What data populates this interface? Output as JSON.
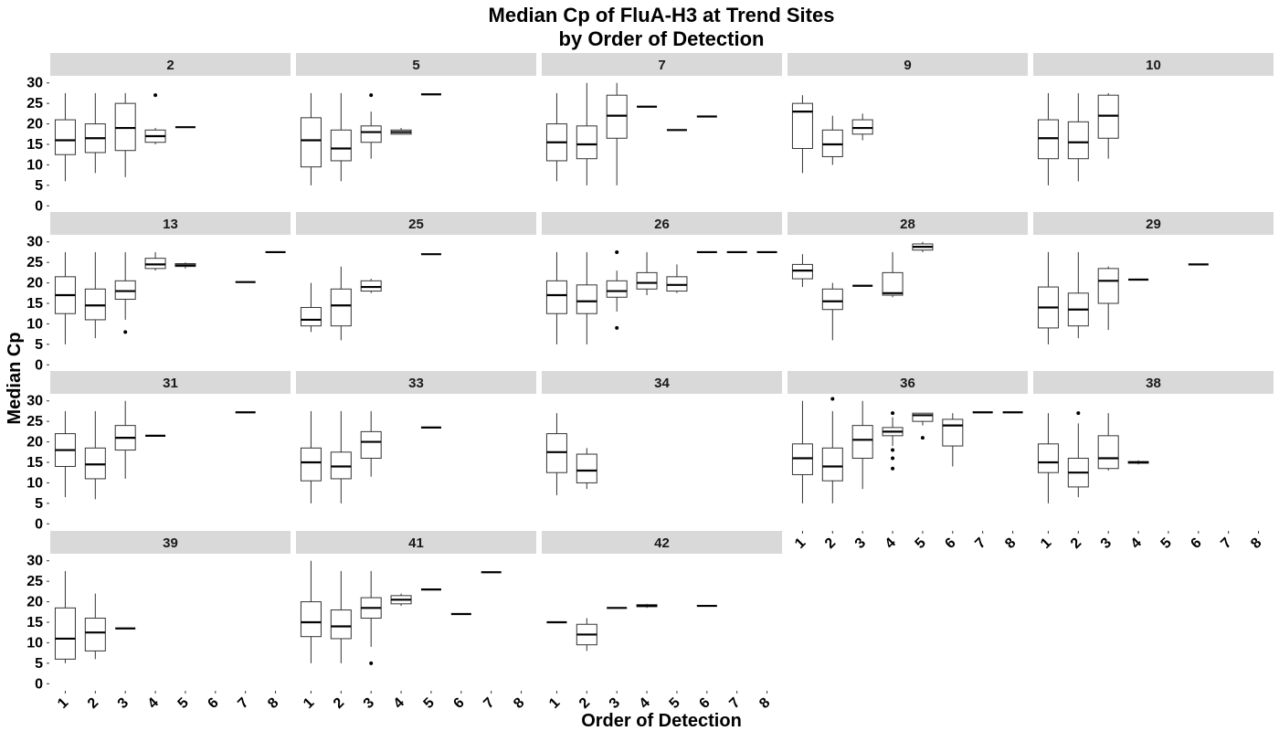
{
  "chart_data": {
    "type": "boxplot",
    "title": "Median Cp of FluA-H3 at Trend Sites\nby Order of Detection",
    "title_lines": [
      "Median Cp of FluA-H3 at Trend Sites",
      "by Order of Detection"
    ],
    "xlabel": "Order of Detection",
    "ylabel": "Median Cp",
    "categories": [
      "1",
      "2",
      "3",
      "4",
      "5",
      "6",
      "7",
      "8"
    ],
    "yticks": [
      0,
      5,
      10,
      15,
      20,
      25,
      30
    ],
    "ylim": [
      -1.5,
      31.5
    ],
    "grid": false,
    "layout": "facet_wrap, 5 columns, 4 rows",
    "colors": {
      "strip": "#d9d9d9",
      "box": "#333333",
      "background": "#ffffff"
    },
    "panels": [
      {
        "site": "2",
        "boxes": [
          {
            "x": 1,
            "min": 6,
            "q1": 12.5,
            "median": 16,
            "q3": 21,
            "max": 27.5,
            "outliers": []
          },
          {
            "x": 2,
            "min": 8,
            "q1": 13,
            "median": 16.5,
            "q3": 20,
            "max": 27.5,
            "outliers": []
          },
          {
            "x": 3,
            "min": 7,
            "q1": 13.5,
            "median": 19,
            "q3": 25,
            "max": 27.5,
            "outliers": []
          },
          {
            "x": 4,
            "min": 15,
            "q1": 15.5,
            "median": 17,
            "q3": 18.5,
            "max": 19,
            "outliers": [
              27
            ]
          },
          {
            "x": 5,
            "min": 19.2,
            "q1": 19.2,
            "median": 19.2,
            "q3": 19.2,
            "max": 19.2,
            "outliers": []
          }
        ]
      },
      {
        "site": "5",
        "boxes": [
          {
            "x": 1,
            "min": 5,
            "q1": 9.5,
            "median": 16,
            "q3": 21.5,
            "max": 27.5,
            "outliers": []
          },
          {
            "x": 2,
            "min": 6,
            "q1": 11,
            "median": 14,
            "q3": 18.5,
            "max": 27.5,
            "outliers": []
          },
          {
            "x": 3,
            "min": 11.5,
            "q1": 15.5,
            "median": 18,
            "q3": 19.5,
            "max": 23,
            "outliers": [
              27
            ]
          },
          {
            "x": 4,
            "min": 17.5,
            "q1": 17.5,
            "median": 18,
            "q3": 18.5,
            "max": 19,
            "outliers": []
          },
          {
            "x": 5,
            "min": 27.2,
            "q1": 27.2,
            "median": 27.2,
            "q3": 27.2,
            "max": 27.2,
            "outliers": []
          }
        ]
      },
      {
        "site": "7",
        "boxes": [
          {
            "x": 1,
            "min": 6,
            "q1": 11,
            "median": 15.5,
            "q3": 20,
            "max": 27.5,
            "outliers": []
          },
          {
            "x": 2,
            "min": 5,
            "q1": 11.5,
            "median": 15,
            "q3": 19.5,
            "max": 30,
            "outliers": []
          },
          {
            "x": 3,
            "min": 5,
            "q1": 16.5,
            "median": 22,
            "q3": 27,
            "max": 30,
            "outliers": []
          },
          {
            "x": 4,
            "min": 24.2,
            "q1": 24.2,
            "median": 24.2,
            "q3": 24.2,
            "max": 24.2,
            "outliers": []
          },
          {
            "x": 5,
            "min": 18.5,
            "q1": 18.5,
            "median": 18.5,
            "q3": 18.5,
            "max": 18.5,
            "outliers": []
          },
          {
            "x": 6,
            "min": 21.8,
            "q1": 21.8,
            "median": 21.8,
            "q3": 21.8,
            "max": 21.8,
            "outliers": []
          }
        ]
      },
      {
        "site": "9",
        "boxes": [
          {
            "x": 1,
            "min": 8,
            "q1": 14,
            "median": 23,
            "q3": 25,
            "max": 27,
            "outliers": []
          },
          {
            "x": 2,
            "min": 10,
            "q1": 12,
            "median": 15,
            "q3": 18.5,
            "max": 22,
            "outliers": []
          },
          {
            "x": 3,
            "min": 16,
            "q1": 17.5,
            "median": 19,
            "q3": 21,
            "max": 22.5,
            "outliers": []
          }
        ]
      },
      {
        "site": "10",
        "boxes": [
          {
            "x": 1,
            "min": 5,
            "q1": 11.5,
            "median": 16.5,
            "q3": 21,
            "max": 27.5,
            "outliers": []
          },
          {
            "x": 2,
            "min": 6,
            "q1": 11.5,
            "median": 15.5,
            "q3": 20.5,
            "max": 27.5,
            "outliers": []
          },
          {
            "x": 3,
            "min": 11.5,
            "q1": 16.5,
            "median": 22,
            "q3": 27,
            "max": 27.5,
            "outliers": []
          }
        ]
      },
      {
        "site": "13",
        "boxes": [
          {
            "x": 1,
            "min": 5,
            "q1": 12.5,
            "median": 17,
            "q3": 21.5,
            "max": 27.5,
            "outliers": []
          },
          {
            "x": 2,
            "min": 6.5,
            "q1": 11,
            "median": 14.5,
            "q3": 18.5,
            "max": 27.5,
            "outliers": []
          },
          {
            "x": 3,
            "min": 11,
            "q1": 16,
            "median": 18,
            "q3": 20.5,
            "max": 27.5,
            "outliers": [
              8
            ]
          },
          {
            "x": 4,
            "min": 23,
            "q1": 23.5,
            "median": 24.5,
            "q3": 26,
            "max": 27.5,
            "outliers": []
          },
          {
            "x": 5,
            "min": 23.5,
            "q1": 24,
            "median": 24.3,
            "q3": 24.7,
            "max": 25,
            "outliers": []
          },
          {
            "x": 7,
            "min": 20.2,
            "q1": 20.2,
            "median": 20.2,
            "q3": 20.2,
            "max": 20.2,
            "outliers": []
          },
          {
            "x": 8,
            "min": 27.5,
            "q1": 27.5,
            "median": 27.5,
            "q3": 27.5,
            "max": 27.5,
            "outliers": []
          }
        ]
      },
      {
        "site": "25",
        "boxes": [
          {
            "x": 1,
            "min": 8,
            "q1": 9.5,
            "median": 11,
            "q3": 14,
            "max": 20,
            "outliers": []
          },
          {
            "x": 2,
            "min": 6,
            "q1": 9.5,
            "median": 14.5,
            "q3": 18.5,
            "max": 24,
            "outliers": []
          },
          {
            "x": 3,
            "min": 17.5,
            "q1": 18,
            "median": 19,
            "q3": 20.5,
            "max": 21,
            "outliers": []
          },
          {
            "x": 5,
            "min": 27,
            "q1": 27,
            "median": 27,
            "q3": 27,
            "max": 27,
            "outliers": []
          }
        ]
      },
      {
        "site": "26",
        "boxes": [
          {
            "x": 1,
            "min": 5,
            "q1": 12.5,
            "median": 17,
            "q3": 20.5,
            "max": 27.5,
            "outliers": []
          },
          {
            "x": 2,
            "min": 5,
            "q1": 12.5,
            "median": 15.5,
            "q3": 19.5,
            "max": 27.5,
            "outliers": []
          },
          {
            "x": 3,
            "min": 13,
            "q1": 16.5,
            "median": 18,
            "q3": 20.5,
            "max": 23,
            "outliers": [
              27.5,
              9
            ]
          },
          {
            "x": 4,
            "min": 17,
            "q1": 18.5,
            "median": 20,
            "q3": 22.5,
            "max": 27.5,
            "outliers": []
          },
          {
            "x": 5,
            "min": 17.5,
            "q1": 18,
            "median": 19.5,
            "q3": 21.5,
            "max": 24.5,
            "outliers": []
          },
          {
            "x": 6,
            "min": 27.5,
            "q1": 27.5,
            "median": 27.5,
            "q3": 27.5,
            "max": 27.5,
            "outliers": []
          },
          {
            "x": 7,
            "min": 27.5,
            "q1": 27.5,
            "median": 27.5,
            "q3": 27.5,
            "max": 27.5,
            "outliers": []
          },
          {
            "x": 8,
            "min": 27.5,
            "q1": 27.5,
            "median": 27.5,
            "q3": 27.5,
            "max": 27.5,
            "outliers": []
          }
        ]
      },
      {
        "site": "28",
        "boxes": [
          {
            "x": 1,
            "min": 19,
            "q1": 21,
            "median": 23,
            "q3": 24.5,
            "max": 27,
            "outliers": []
          },
          {
            "x": 2,
            "min": 6,
            "q1": 13.5,
            "median": 15.5,
            "q3": 18.5,
            "max": 20,
            "outliers": []
          },
          {
            "x": 3,
            "min": 19.3,
            "q1": 19.3,
            "median": 19.3,
            "q3": 19.3,
            "max": 19.3,
            "outliers": []
          },
          {
            "x": 4,
            "min": 16.5,
            "q1": 17,
            "median": 17.5,
            "q3": 22.5,
            "max": 27.5,
            "outliers": []
          },
          {
            "x": 5,
            "min": 27.5,
            "q1": 28,
            "median": 28.8,
            "q3": 29.5,
            "max": 30,
            "outliers": []
          }
        ]
      },
      {
        "site": "29",
        "boxes": [
          {
            "x": 1,
            "min": 5,
            "q1": 9,
            "median": 14,
            "q3": 19,
            "max": 27.5,
            "outliers": []
          },
          {
            "x": 2,
            "min": 6.5,
            "q1": 9.5,
            "median": 13.5,
            "q3": 17.5,
            "max": 27.5,
            "outliers": []
          },
          {
            "x": 3,
            "min": 8.5,
            "q1": 15,
            "median": 20.5,
            "q3": 23.5,
            "max": 24,
            "outliers": []
          },
          {
            "x": 4,
            "min": 20.8,
            "q1": 20.8,
            "median": 20.8,
            "q3": 20.8,
            "max": 20.8,
            "outliers": []
          },
          {
            "x": 6,
            "min": 24.5,
            "q1": 24.5,
            "median": 24.5,
            "q3": 24.5,
            "max": 24.5,
            "outliers": []
          }
        ]
      },
      {
        "site": "31",
        "boxes": [
          {
            "x": 1,
            "min": 6.5,
            "q1": 14,
            "median": 18,
            "q3": 22,
            "max": 27.5,
            "outliers": []
          },
          {
            "x": 2,
            "min": 6,
            "q1": 11,
            "median": 14.5,
            "q3": 18.5,
            "max": 27.5,
            "outliers": []
          },
          {
            "x": 3,
            "min": 11,
            "q1": 18,
            "median": 21,
            "q3": 24,
            "max": 30,
            "outliers": []
          },
          {
            "x": 4,
            "min": 21.5,
            "q1": 21.5,
            "median": 21.5,
            "q3": 21.5,
            "max": 21.5,
            "outliers": []
          },
          {
            "x": 7,
            "min": 27.2,
            "q1": 27.2,
            "median": 27.2,
            "q3": 27.2,
            "max": 27.2,
            "outliers": []
          }
        ]
      },
      {
        "site": "33",
        "boxes": [
          {
            "x": 1,
            "min": 5,
            "q1": 10.5,
            "median": 15,
            "q3": 18.5,
            "max": 27.5,
            "outliers": []
          },
          {
            "x": 2,
            "min": 5,
            "q1": 11,
            "median": 14,
            "q3": 17.5,
            "max": 27.5,
            "outliers": []
          },
          {
            "x": 3,
            "min": 11.5,
            "q1": 16,
            "median": 20,
            "q3": 22.5,
            "max": 27.5,
            "outliers": []
          },
          {
            "x": 5,
            "min": 23.5,
            "q1": 23.5,
            "median": 23.5,
            "q3": 23.5,
            "max": 23.5,
            "outliers": []
          }
        ]
      },
      {
        "site": "34",
        "boxes": [
          {
            "x": 1,
            "min": 7,
            "q1": 12.5,
            "median": 17.5,
            "q3": 22,
            "max": 27,
            "outliers": []
          },
          {
            "x": 2,
            "min": 8.5,
            "q1": 10,
            "median": 13,
            "q3": 17,
            "max": 18.5,
            "outliers": []
          }
        ]
      },
      {
        "site": "36",
        "boxes": [
          {
            "x": 1,
            "min": 5,
            "q1": 12,
            "median": 16,
            "q3": 19.5,
            "max": 30,
            "outliers": []
          },
          {
            "x": 2,
            "min": 5,
            "q1": 10.5,
            "median": 14,
            "q3": 18.5,
            "max": 27.5,
            "outliers": [
              30.5
            ]
          },
          {
            "x": 3,
            "min": 8.5,
            "q1": 16,
            "median": 20.5,
            "q3": 24,
            "max": 30,
            "outliers": []
          },
          {
            "x": 4,
            "min": 19,
            "q1": 21.5,
            "median": 22.5,
            "q3": 23.5,
            "max": 26,
            "outliers": [
              27,
              18,
              16,
              13.5
            ]
          },
          {
            "x": 5,
            "min": 24,
            "q1": 25,
            "median": 26.5,
            "q3": 27,
            "max": 27,
            "outliers": [
              21
            ]
          },
          {
            "x": 6,
            "min": 14,
            "q1": 19,
            "median": 24,
            "q3": 25.5,
            "max": 27,
            "outliers": []
          },
          {
            "x": 7,
            "min": 27.2,
            "q1": 27.2,
            "median": 27.2,
            "q3": 27.2,
            "max": 27.2,
            "outliers": []
          },
          {
            "x": 8,
            "min": 27.2,
            "q1": 27.2,
            "median": 27.2,
            "q3": 27.2,
            "max": 27.2,
            "outliers": []
          }
        ]
      },
      {
        "site": "38",
        "boxes": [
          {
            "x": 1,
            "min": 5,
            "q1": 12.5,
            "median": 15,
            "q3": 19.5,
            "max": 27,
            "outliers": []
          },
          {
            "x": 2,
            "min": 6.5,
            "q1": 9,
            "median": 12.5,
            "q3": 16,
            "max": 24.5,
            "outliers": [
              27
            ]
          },
          {
            "x": 3,
            "min": 13,
            "q1": 13.5,
            "median": 16,
            "q3": 21.5,
            "max": 27,
            "outliers": []
          },
          {
            "x": 4,
            "min": 14.5,
            "q1": 14.8,
            "median": 15,
            "q3": 15.2,
            "max": 15.5,
            "outliers": []
          }
        ]
      },
      {
        "site": "39",
        "boxes": [
          {
            "x": 1,
            "min": 5,
            "q1": 6,
            "median": 11,
            "q3": 18.5,
            "max": 27.5,
            "outliers": []
          },
          {
            "x": 2,
            "min": 6,
            "q1": 8,
            "median": 12.5,
            "q3": 16,
            "max": 22,
            "outliers": []
          },
          {
            "x": 3,
            "min": 13.5,
            "q1": 13.5,
            "median": 13.5,
            "q3": 13.5,
            "max": 13.5,
            "outliers": []
          }
        ]
      },
      {
        "site": "41",
        "boxes": [
          {
            "x": 1,
            "min": 5,
            "q1": 11.5,
            "median": 15,
            "q3": 20,
            "max": 30,
            "outliers": []
          },
          {
            "x": 2,
            "min": 5,
            "q1": 11,
            "median": 14,
            "q3": 18,
            "max": 27.5,
            "outliers": []
          },
          {
            "x": 3,
            "min": 9,
            "q1": 16,
            "median": 18.5,
            "q3": 21,
            "max": 27.5,
            "outliers": [
              5
            ]
          },
          {
            "x": 4,
            "min": 19,
            "q1": 19.5,
            "median": 20.5,
            "q3": 21.5,
            "max": 22,
            "outliers": []
          },
          {
            "x": 5,
            "min": 23,
            "q1": 23,
            "median": 23,
            "q3": 23,
            "max": 23,
            "outliers": []
          },
          {
            "x": 6,
            "min": 17,
            "q1": 17,
            "median": 17,
            "q3": 17,
            "max": 17,
            "outliers": []
          },
          {
            "x": 7,
            "min": 27.2,
            "q1": 27.2,
            "median": 27.2,
            "q3": 27.2,
            "max": 27.2,
            "outliers": []
          }
        ]
      },
      {
        "site": "42",
        "boxes": [
          {
            "x": 1,
            "min": 15,
            "q1": 15,
            "median": 15,
            "q3": 15,
            "max": 15,
            "outliers": []
          },
          {
            "x": 2,
            "min": 8,
            "q1": 9.5,
            "median": 12,
            "q3": 14.5,
            "max": 16,
            "outliers": []
          },
          {
            "x": 3,
            "min": 18.5,
            "q1": 18.5,
            "median": 18.5,
            "q3": 18.5,
            "max": 18.5,
            "outliers": []
          },
          {
            "x": 4,
            "min": 18.5,
            "q1": 18.8,
            "median": 19,
            "q3": 19.3,
            "max": 19.5,
            "outliers": []
          },
          {
            "x": 6,
            "min": 19,
            "q1": 19,
            "median": 19,
            "q3": 19,
            "max": 19,
            "outliers": []
          }
        ]
      }
    ]
  }
}
